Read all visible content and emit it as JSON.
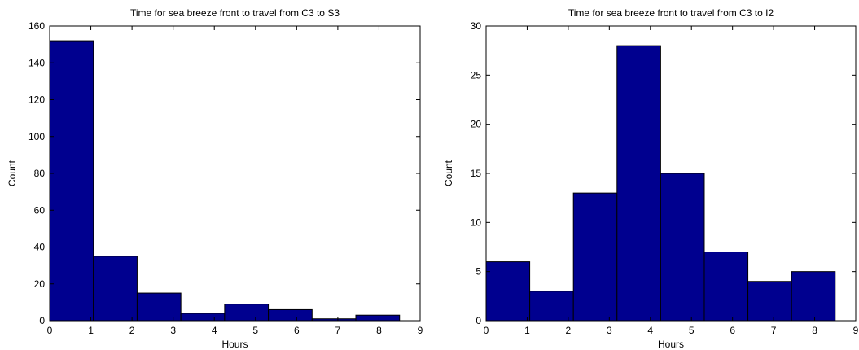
{
  "chart_data": [
    {
      "type": "bar",
      "title": "Time for sea breeze front to travel from C3 to S3",
      "xlabel": "Hours",
      "ylabel": "Count",
      "xlim": [
        0,
        9
      ],
      "ylim": [
        0,
        160
      ],
      "xticks": [
        0,
        1,
        2,
        3,
        4,
        5,
        6,
        7,
        8,
        9
      ],
      "yticks": [
        0,
        20,
        40,
        60,
        80,
        100,
        120,
        140,
        160
      ],
      "grid": false,
      "bin_edges": [
        0,
        1.0625,
        2.125,
        3.1875,
        4.25,
        5.3125,
        6.375,
        7.4375,
        8.5
      ],
      "values": [
        152,
        35,
        15,
        4,
        9,
        6,
        1,
        3
      ],
      "color": "#00008f"
    },
    {
      "type": "bar",
      "title": "Time for sea breeze front to travel from C3 to I2",
      "xlabel": "Hours",
      "ylabel": "Count",
      "xlim": [
        0,
        9
      ],
      "ylim": [
        0,
        30
      ],
      "xticks": [
        0,
        1,
        2,
        3,
        4,
        5,
        6,
        7,
        8,
        9
      ],
      "yticks": [
        0,
        5,
        10,
        15,
        20,
        25,
        30
      ],
      "grid": false,
      "bin_edges": [
        0,
        1.0625,
        2.125,
        3.1875,
        4.25,
        5.3125,
        6.375,
        7.4375,
        8.5
      ],
      "values": [
        6,
        3,
        13,
        28,
        15,
        7,
        4,
        5
      ],
      "color": "#00008f"
    }
  ]
}
